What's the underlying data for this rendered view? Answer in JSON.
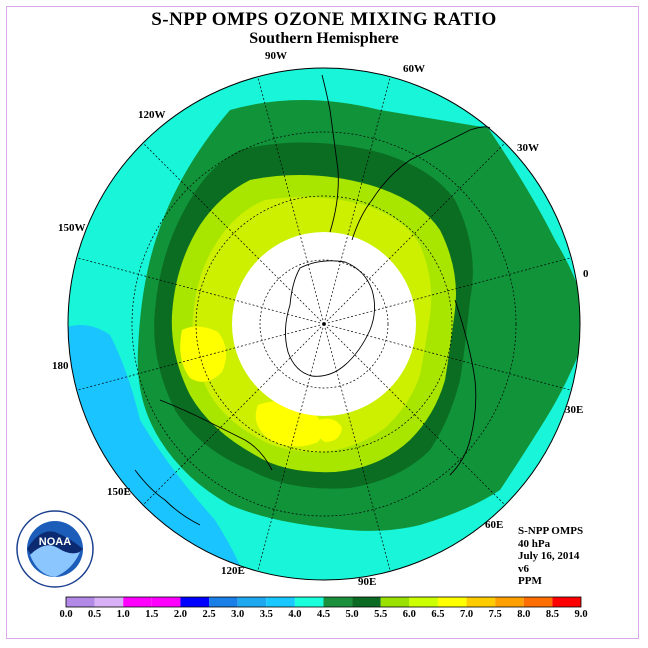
{
  "title": "S-NPP OMPS OZONE MIXING RATIO",
  "subtitle": "Southern Hemisphere",
  "longitude_labels": [
    "90W",
    "60W",
    "120W",
    "30W",
    "150W",
    "0",
    "180",
    "30E",
    "150E",
    "60E",
    "120E",
    "90E"
  ],
  "info": {
    "instrument": "S-NPP OMPS",
    "level": "40 hPa",
    "date": "July 16, 2014",
    "version": "v6",
    "units": "PPM"
  },
  "logo": {
    "text": "NOAA",
    "ring_text": "NATIONAL OCEANIC AND ATMOSPHERIC ADMINISTRATION · U.S. DEPARTMENT OF COMMERCE"
  },
  "colorbar": {
    "ticks": [
      "0.0",
      "0.5",
      "1.0",
      "1.5",
      "2.0",
      "2.5",
      "3.0",
      "3.5",
      "4.0",
      "4.5",
      "5.0",
      "5.5",
      "6.0",
      "6.5",
      "7.0",
      "7.5",
      "8.0",
      "8.5",
      "9.0"
    ],
    "colors": [
      "#b389e8",
      "#d8b0f5",
      "#ff00ff",
      "#ff00ff",
      "#0000ff",
      "#1b7fe8",
      "#1ea8f0",
      "#18c8ff",
      "#19ffdc",
      "#1a8f3c",
      "#0c6b22",
      "#9ae000",
      "#ccff00",
      "#ffff00",
      "#ffcc00",
      "#ffa000",
      "#ff6e00",
      "#ff0000",
      "#8b5a2b"
    ]
  },
  "colors": {
    "outer_cyan": "#19f5d8",
    "blue": "#19c4ff",
    "green_mid": "#11933a",
    "green_dark": "#0b6d22",
    "lime_light": "#a8e600",
    "lime": "#ccf000",
    "yellow": "#ffff00",
    "polar_night": "#ffffff"
  }
}
